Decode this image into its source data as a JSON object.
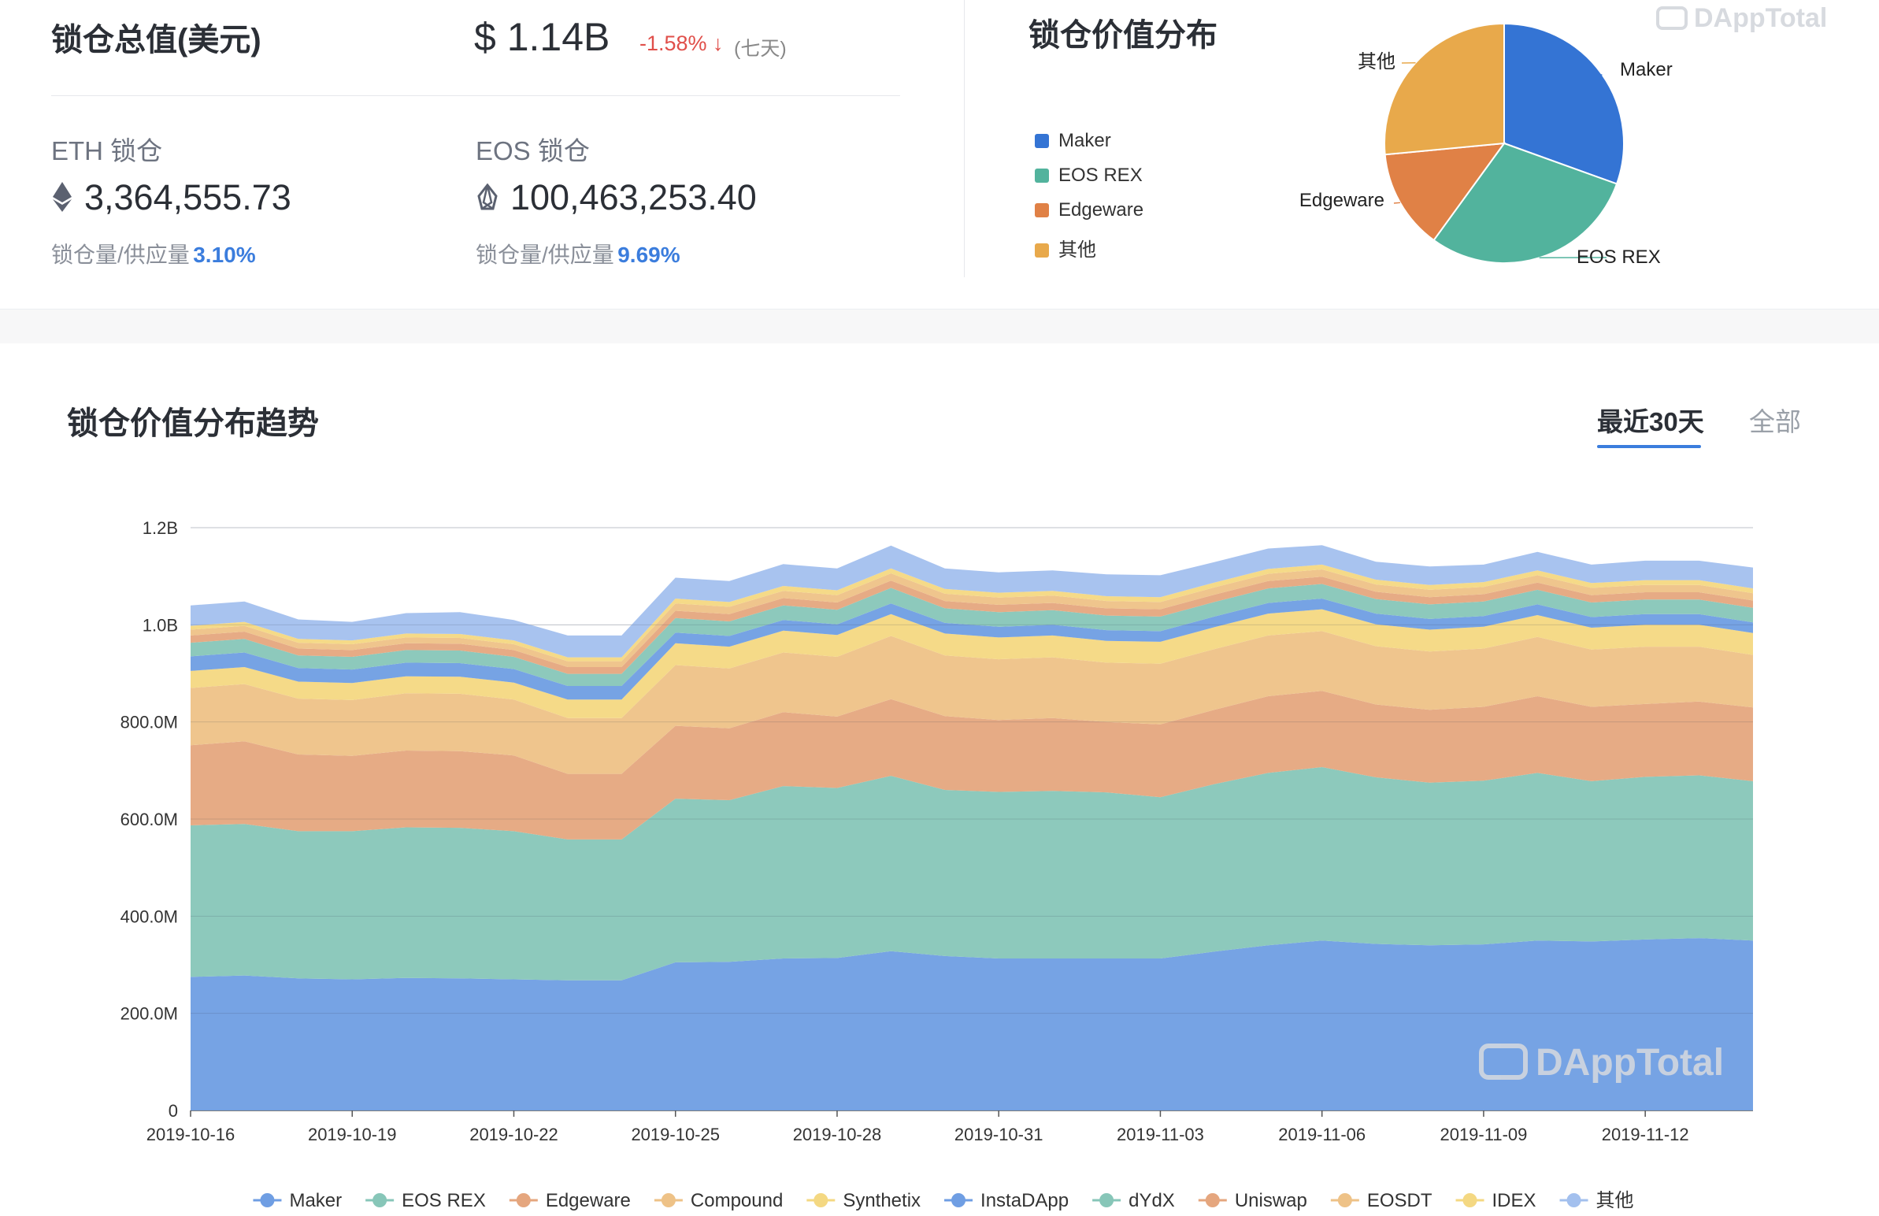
{
  "summary": {
    "total_label": "锁仓总值(美元)",
    "total_value": "$ 1.14B",
    "change": "-1.58% ↓",
    "change_period": "(七天)",
    "eth": {
      "label": "ETH 锁仓",
      "amount": "3,364,555.73",
      "ratio_label": "锁仓量/供应量",
      "ratio_value": "3.10%"
    },
    "eos": {
      "label": "EOS 锁仓",
      "amount": "100,463,253.40",
      "ratio_label": "锁仓量/供应量",
      "ratio_value": "9.69%"
    }
  },
  "distribution": {
    "title": "锁仓价值分布",
    "watermark": "DAppTotal"
  },
  "trend": {
    "title": "锁仓价值分布趋势",
    "tabs": [
      {
        "label": "最近30天",
        "active": true
      },
      {
        "label": "全部",
        "active": false
      }
    ],
    "watermark": "DAppTotal"
  },
  "colors": {
    "up_accent": "#3b7ddd",
    "down_accent": "#e04f4a"
  },
  "chart_data": [
    {
      "type": "pie",
      "title": "锁仓价值分布",
      "slices": [
        {
          "name": "Maker",
          "value": 30.5,
          "color": "#3474d4"
        },
        {
          "name": "EOS REX",
          "value": 29.5,
          "color": "#52b39d"
        },
        {
          "name": "Edgeware",
          "value": 13.5,
          "color": "#e08146"
        },
        {
          "name": "其他",
          "value": 26.5,
          "color": "#e8a94b"
        }
      ],
      "legend": {
        "position": "left"
      }
    },
    {
      "type": "area",
      "stacked": true,
      "title": "锁仓价值分布趋势",
      "x": [
        "2019-10-16",
        "2019-10-17",
        "2019-10-18",
        "2019-10-19",
        "2019-10-20",
        "2019-10-21",
        "2019-10-22",
        "2019-10-23",
        "2019-10-24",
        "2019-10-25",
        "2019-10-26",
        "2019-10-27",
        "2019-10-28",
        "2019-10-29",
        "2019-10-30",
        "2019-10-31",
        "2019-11-01",
        "2019-11-02",
        "2019-11-03",
        "2019-11-04",
        "2019-11-05",
        "2019-11-06",
        "2019-11-07",
        "2019-11-08",
        "2019-11-09",
        "2019-11-10",
        "2019-11-11",
        "2019-11-12",
        "2019-11-13",
        "2019-11-14"
      ],
      "x_ticks": [
        "2019-10-16",
        "2019-10-19",
        "2019-10-22",
        "2019-10-25",
        "2019-10-28",
        "2019-10-31",
        "2019-11-03",
        "2019-11-06",
        "2019-11-09",
        "2019-11-12"
      ],
      "y_ticks": [
        "0",
        "200.0M",
        "400.0M",
        "600.0M",
        "800.0M",
        "1.0B",
        "1.2B"
      ],
      "ylim": [
        0,
        1200
      ],
      "y_unit": "M USD",
      "grid": true,
      "legend": {
        "position": "bottom"
      },
      "series": [
        {
          "name": "Maker",
          "color": "#6f9ee3",
          "values": [
            275,
            278,
            272,
            270,
            273,
            272,
            270,
            268,
            268,
            305,
            306,
            313,
            314,
            328,
            318,
            313,
            313,
            313,
            313,
            327,
            340,
            350,
            343,
            340,
            342,
            350,
            348,
            352,
            355,
            350
          ]
        },
        {
          "name": "EOS REX",
          "color": "#87c6b8",
          "values": [
            312,
            312,
            303,
            305,
            310,
            310,
            305,
            290,
            290,
            337,
            333,
            355,
            350,
            361,
            342,
            343,
            345,
            342,
            332,
            345,
            355,
            357,
            343,
            335,
            337,
            345,
            330,
            335,
            335,
            328
          ]
        },
        {
          "name": "Edgeware",
          "color": "#e5a67e",
          "values": [
            165,
            170,
            158,
            155,
            158,
            158,
            156,
            135,
            135,
            150,
            148,
            152,
            147,
            158,
            152,
            148,
            150,
            145,
            150,
            153,
            158,
            157,
            150,
            150,
            152,
            158,
            153,
            150,
            152,
            152
          ]
        },
        {
          "name": "Compound",
          "color": "#eec287",
          "values": [
            118,
            118,
            115,
            115,
            118,
            118,
            115,
            115,
            115,
            125,
            123,
            123,
            123,
            130,
            125,
            125,
            125,
            122,
            125,
            125,
            125,
            123,
            120,
            120,
            120,
            122,
            118,
            118,
            113,
            108
          ]
        },
        {
          "name": "Synthetix",
          "color": "#f4d882",
          "values": [
            35,
            35,
            35,
            35,
            35,
            35,
            35,
            38,
            38,
            45,
            45,
            45,
            45,
            45,
            45,
            45,
            45,
            45,
            45,
            45,
            45,
            45,
            45,
            45,
            45,
            45,
            45,
            45,
            45,
            45
          ]
        },
        {
          "name": "InstaDApp",
          "color": "#6f9ee3",
          "values": [
            30,
            30,
            28,
            28,
            28,
            28,
            28,
            28,
            28,
            22,
            22,
            22,
            22,
            22,
            22,
            22,
            22,
            22,
            22,
            22,
            22,
            22,
            22,
            22,
            22,
            22,
            22,
            22,
            22,
            22
          ]
        },
        {
          "name": "dYdX",
          "color": "#87c6b8",
          "values": [
            28,
            28,
            26,
            26,
            26,
            26,
            25,
            25,
            25,
            30,
            30,
            30,
            30,
            32,
            30,
            30,
            30,
            30,
            30,
            30,
            30,
            30,
            30,
            30,
            30,
            30,
            30,
            30,
            30,
            30
          ]
        },
        {
          "name": "Uniswap",
          "color": "#e5a67e",
          "values": [
            15,
            15,
            14,
            14,
            14,
            14,
            14,
            14,
            14,
            15,
            15,
            15,
            15,
            15,
            15,
            15,
            15,
            15,
            15,
            15,
            15,
            15,
            15,
            15,
            15,
            15,
            15,
            15,
            15,
            15
          ]
        },
        {
          "name": "EOSDT",
          "color": "#eec287",
          "values": [
            12,
            12,
            12,
            12,
            12,
            12,
            12,
            12,
            12,
            15,
            15,
            15,
            15,
            15,
            15,
            15,
            15,
            15,
            15,
            15,
            15,
            15,
            15,
            15,
            15,
            15,
            15,
            15,
            15,
            15
          ]
        },
        {
          "name": "IDEX",
          "color": "#f4d882",
          "values": [
            8,
            8,
            8,
            8,
            8,
            8,
            8,
            8,
            8,
            10,
            10,
            10,
            10,
            10,
            10,
            10,
            10,
            10,
            10,
            10,
            10,
            10,
            10,
            10,
            10,
            10,
            10,
            10,
            10,
            10
          ]
        },
        {
          "name": "其他",
          "color": "#a3c0ee",
          "values": [
            42,
            42,
            40,
            38,
            42,
            45,
            42,
            45,
            45,
            43,
            43,
            45,
            45,
            47,
            42,
            42,
            42,
            45,
            45,
            42,
            42,
            40,
            37,
            38,
            36,
            38,
            38,
            40,
            40,
            43
          ]
        }
      ]
    }
  ]
}
